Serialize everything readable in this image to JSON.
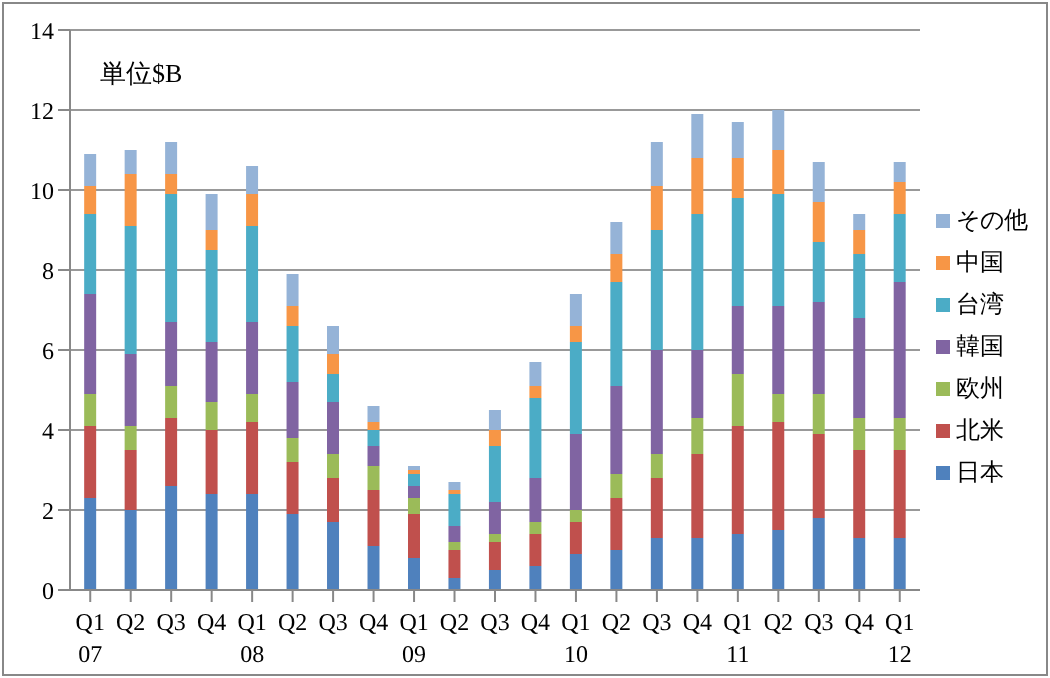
{
  "chart_data": {
    "type": "bar",
    "stacked": true,
    "categories": [
      "Q1\n07",
      "Q2",
      "Q3",
      "Q4",
      "Q1\n08",
      "Q2",
      "Q3",
      "Q4",
      "Q1\n09",
      "Q2",
      "Q3",
      "Q4",
      "Q1\n10",
      "Q2",
      "Q3",
      "Q4",
      "Q1\n11",
      "Q2",
      "Q3",
      "Q4",
      "Q1\n12"
    ],
    "series": [
      {
        "name": "日本",
        "color": "#4f81bd",
        "values": [
          2.3,
          2.0,
          2.6,
          2.4,
          2.4,
          1.9,
          1.7,
          1.1,
          0.8,
          0.3,
          0.5,
          0.6,
          0.9,
          1.0,
          1.3,
          1.3,
          1.4,
          1.5,
          1.8,
          1.3,
          1.3
        ]
      },
      {
        "name": "北米",
        "color": "#c0504d",
        "values": [
          1.8,
          1.5,
          1.7,
          1.6,
          1.8,
          1.3,
          1.1,
          1.4,
          1.1,
          0.7,
          0.7,
          0.8,
          0.8,
          1.3,
          1.5,
          2.1,
          2.7,
          2.7,
          2.1,
          2.2,
          2.2
        ]
      },
      {
        "name": "欧州",
        "color": "#9bbb59",
        "values": [
          0.8,
          0.6,
          0.8,
          0.7,
          0.7,
          0.6,
          0.6,
          0.6,
          0.4,
          0.2,
          0.2,
          0.3,
          0.3,
          0.6,
          0.6,
          0.9,
          1.3,
          0.7,
          1.0,
          0.8,
          0.8
        ]
      },
      {
        "name": "韓国",
        "color": "#8064a2",
        "values": [
          2.5,
          1.8,
          1.6,
          1.5,
          1.8,
          1.4,
          1.3,
          0.5,
          0.3,
          0.4,
          0.8,
          1.1,
          1.9,
          2.2,
          2.6,
          1.7,
          1.7,
          2.2,
          2.3,
          2.5,
          3.4
        ]
      },
      {
        "name": "台湾",
        "color": "#4bacc6",
        "values": [
          2.0,
          3.2,
          3.2,
          2.3,
          2.4,
          1.4,
          0.7,
          0.4,
          0.3,
          0.8,
          1.4,
          2.0,
          2.3,
          2.6,
          3.0,
          3.4,
          2.7,
          2.8,
          1.5,
          1.6,
          1.7
        ]
      },
      {
        "name": "中国",
        "color": "#f79646",
        "values": [
          0.7,
          1.3,
          0.5,
          0.5,
          0.8,
          0.5,
          0.5,
          0.2,
          0.1,
          0.1,
          0.4,
          0.3,
          0.4,
          0.7,
          1.1,
          1.4,
          1.0,
          1.1,
          1.0,
          0.6,
          0.8
        ]
      },
      {
        "name": "その他",
        "color": "#95b3d7",
        "values": [
          0.8,
          0.6,
          0.8,
          0.9,
          0.7,
          0.8,
          0.7,
          0.4,
          0.1,
          0.2,
          0.5,
          0.6,
          0.8,
          0.8,
          1.1,
          1.1,
          0.9,
          1.0,
          1.0,
          0.4,
          0.5
        ]
      }
    ],
    "ylim": [
      0,
      14
    ],
    "yticks": [
      0,
      2,
      4,
      6,
      8,
      10,
      12,
      14
    ],
    "grid": "y",
    "legend": "right",
    "annotations": [
      "単位$B"
    ]
  }
}
